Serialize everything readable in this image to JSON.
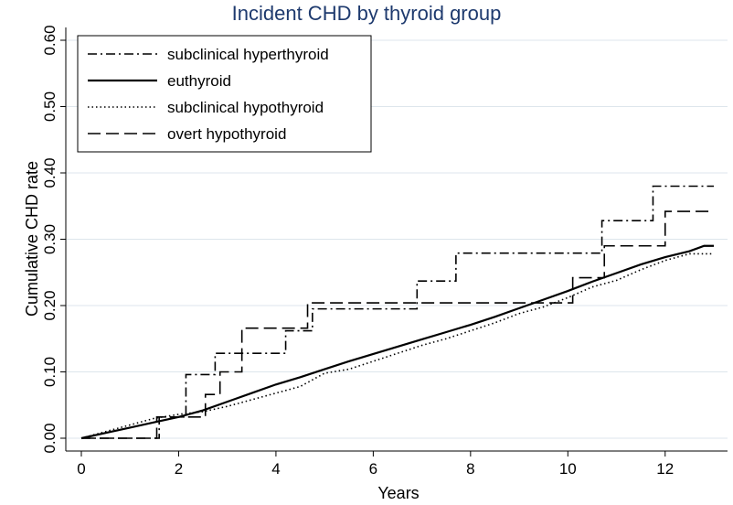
{
  "chart_data": {
    "type": "line",
    "title": "Incident CHD by thyroid group",
    "xlabel": "Years",
    "ylabel": "Cumulative CHD rate",
    "xlim": [
      0,
      13.5
    ],
    "ylim": [
      0,
      0.61
    ],
    "xticks": [
      0,
      2,
      4,
      6,
      8,
      10,
      12
    ],
    "xtick_labels": [
      "0",
      "2",
      "4",
      "6",
      "8",
      "10",
      "12"
    ],
    "yticks": [
      0,
      0.1,
      0.2,
      0.3,
      0.4,
      0.5,
      0.6
    ],
    "ytick_labels": [
      "0.00",
      "0.10",
      "0.20",
      "0.30",
      "0.40",
      "0.50",
      "0.60"
    ],
    "grid": "horizontal",
    "legend_position": "top-left",
    "step": true,
    "series": [
      {
        "name": "subclinical hyperthyroid",
        "dash": "10,4,2,4",
        "width": 1.6,
        "x": [
          0,
          1.6,
          2.15,
          2.55,
          2.75,
          3.3,
          4.2,
          4.75,
          6.9,
          7.7,
          10.7,
          11.75,
          13.0
        ],
        "y": [
          0,
          0.032,
          0.096,
          0.096,
          0.128,
          0.128,
          0.162,
          0.195,
          0.237,
          0.279,
          0.328,
          0.38,
          0.38
        ]
      },
      {
        "name": "euthyroid",
        "dash": "",
        "width": 2.2,
        "x": [
          0,
          0.5,
          1.0,
          1.5,
          2.0,
          2.5,
          3.0,
          3.5,
          4.0,
          4.5,
          5.0,
          5.5,
          6.0,
          6.5,
          7.0,
          7.5,
          8.0,
          8.5,
          9.0,
          9.5,
          10.0,
          10.5,
          11.0,
          11.5,
          12.0,
          12.5,
          12.8,
          13.0
        ],
        "y": [
          0,
          0.008,
          0.016,
          0.024,
          0.032,
          0.042,
          0.055,
          0.068,
          0.081,
          0.092,
          0.104,
          0.116,
          0.127,
          0.138,
          0.149,
          0.16,
          0.171,
          0.183,
          0.196,
          0.209,
          0.222,
          0.236,
          0.249,
          0.262,
          0.273,
          0.282,
          0.29,
          0.29
        ]
      },
      {
        "name": "subclinical hypothyroid",
        "dash": "1.5,3",
        "width": 1.6,
        "x": [
          0,
          0.5,
          1.0,
          1.5,
          2.0,
          2.5,
          3.0,
          3.5,
          4.0,
          4.5,
          5.0,
          5.5,
          6.0,
          6.5,
          7.0,
          7.5,
          8.0,
          8.5,
          9.0,
          9.5,
          10.0,
          10.5,
          11.0,
          11.5,
          12.0,
          12.5,
          13.0
        ],
        "y": [
          0,
          0.01,
          0.02,
          0.03,
          0.036,
          0.04,
          0.048,
          0.058,
          0.068,
          0.078,
          0.098,
          0.104,
          0.116,
          0.128,
          0.14,
          0.15,
          0.162,
          0.174,
          0.188,
          0.198,
          0.212,
          0.228,
          0.238,
          0.254,
          0.268,
          0.278,
          0.278
        ]
      },
      {
        "name": "overt hypothyroid",
        "dash": "14,6",
        "width": 1.6,
        "x": [
          0,
          1.55,
          2.55,
          2.85,
          3.3,
          4.65,
          10.1,
          10.75,
          12.0,
          13.0
        ],
        "y": [
          0,
          0.032,
          0.066,
          0.1,
          0.166,
          0.204,
          0.242,
          0.29,
          0.342,
          0.342
        ]
      }
    ]
  }
}
